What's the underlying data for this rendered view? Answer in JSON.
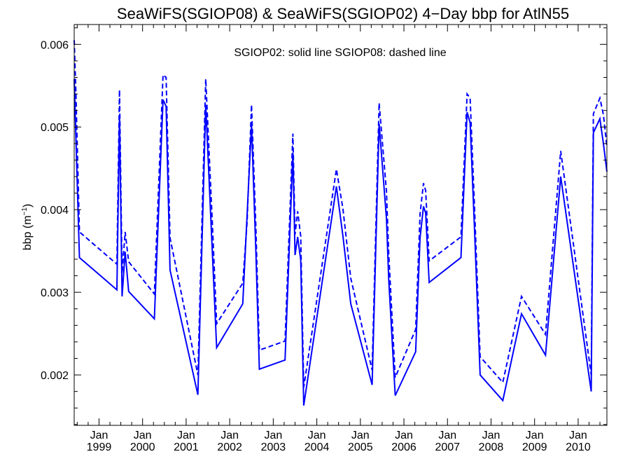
{
  "chart_data": {
    "type": "line",
    "title": "SeaWiFS(SGIOP08) & SeaWiFS(SGIOP02) 4−Day bbp for AtlN55",
    "annotation": "SGIOP02: solid line   SGIOP08: dashed line",
    "ylabel": "bbp (m",
    "ylabel_sup": "−1",
    "ylabel_close": ")",
    "xlim": [
      1998.43,
      2010.66
    ],
    "ylim": [
      0.00139,
      0.00624
    ],
    "grid": false,
    "y_ticks": [
      {
        "value": 0.002,
        "label": "0.002"
      },
      {
        "value": 0.003,
        "label": "0.003"
      },
      {
        "value": 0.004,
        "label": "0.004"
      },
      {
        "value": 0.005,
        "label": "0.005"
      },
      {
        "value": 0.006,
        "label": "0.006"
      }
    ],
    "x_ticks": [
      {
        "value": 1999.0,
        "month": "Jan",
        "year": "1999"
      },
      {
        "value": 2000.0,
        "month": "Jan",
        "year": "2000"
      },
      {
        "value": 2001.0,
        "month": "Jan",
        "year": "2001"
      },
      {
        "value": 2002.0,
        "month": "Jan",
        "year": "2002"
      },
      {
        "value": 2003.0,
        "month": "Jan",
        "year": "2003"
      },
      {
        "value": 2004.0,
        "month": "Jan",
        "year": "2004"
      },
      {
        "value": 2005.0,
        "month": "Jan",
        "year": "2005"
      },
      {
        "value": 2006.0,
        "month": "Jan",
        "year": "2006"
      },
      {
        "value": 2007.0,
        "month": "Jan",
        "year": "2007"
      },
      {
        "value": 2008.0,
        "month": "Jan",
        "year": "2008"
      },
      {
        "value": 2009.0,
        "month": "Jan",
        "year": "2009"
      },
      {
        "value": 2010.0,
        "month": "Jan",
        "year": "2010"
      }
    ],
    "series": [
      {
        "name": "SGIOP02",
        "style": "solid",
        "color": "#0000ff",
        "x": [
          1998.43,
          1998.47,
          1998.55,
          1999.41,
          1999.47,
          1999.53,
          1999.6,
          1999.68,
          2000.27,
          2000.47,
          2000.54,
          2000.63,
          2001.27,
          2001.45,
          2001.6,
          2001.7,
          2002.3,
          2002.5,
          2002.6,
          2002.68,
          2003.27,
          2003.45,
          2003.5,
          2003.56,
          2003.63,
          2003.7,
          2004.45,
          2004.6,
          2004.78,
          2005.27,
          2005.43,
          2005.6,
          2005.65,
          2005.8,
          2006.27,
          2006.37,
          2006.45,
          2006.5,
          2006.58,
          2007.31,
          2007.45,
          2007.52,
          2007.62,
          2007.75,
          2008.27,
          2008.7,
          2009.25,
          2009.6,
          2010.3,
          2010.35,
          2010.5,
          2010.58,
          2010.66
        ],
        "y": [
          0.00558,
          0.00485,
          0.00342,
          0.00303,
          0.00512,
          0.00295,
          0.00349,
          0.00301,
          0.00268,
          0.00533,
          0.00525,
          0.00327,
          0.00176,
          0.00527,
          0.00349,
          0.00233,
          0.00286,
          0.00503,
          0.0035,
          0.00207,
          0.00218,
          0.00469,
          0.00345,
          0.00367,
          0.00339,
          0.00163,
          0.00428,
          0.00368,
          0.00286,
          0.00188,
          0.00504,
          0.00389,
          0.00316,
          0.00175,
          0.00228,
          0.00366,
          0.00404,
          0.00396,
          0.00312,
          0.00342,
          0.00518,
          0.00505,
          0.00378,
          0.002,
          0.00169,
          0.00274,
          0.00224,
          0.0044,
          0.0018,
          0.00493,
          0.0051,
          0.0048,
          0.00446
        ]
      },
      {
        "name": "SGIOP08",
        "style": "dashed",
        "color": "#0000ff",
        "x": [
          1998.43,
          1998.47,
          1998.55,
          1999.41,
          1999.47,
          1999.53,
          1999.6,
          1999.68,
          2000.27,
          2000.47,
          2000.54,
          2000.63,
          2001.27,
          2001.45,
          2001.6,
          2001.7,
          2002.3,
          2002.4,
          2002.5,
          2002.6,
          2002.68,
          2003.27,
          2003.45,
          2003.5,
          2003.56,
          2003.63,
          2003.7,
          2004.45,
          2004.6,
          2004.78,
          2005.27,
          2005.43,
          2005.6,
          2005.65,
          2005.8,
          2006.27,
          2006.37,
          2006.45,
          2006.5,
          2006.58,
          2007.31,
          2007.45,
          2007.52,
          2007.62,
          2007.75,
          2008.27,
          2008.7,
          2009.25,
          2009.6,
          2010.3,
          2010.35,
          2010.5,
          2010.58,
          2010.66
        ],
        "y": [
          0.00605,
          0.0054,
          0.00373,
          0.00334,
          0.00545,
          0.00323,
          0.00373,
          0.00337,
          0.00298,
          0.00563,
          0.0056,
          0.00366,
          0.002,
          0.00558,
          0.00385,
          0.00262,
          0.00311,
          0.00385,
          0.00527,
          0.0038,
          0.0023,
          0.00241,
          0.00492,
          0.0037,
          0.00398,
          0.00368,
          0.00185,
          0.00449,
          0.00401,
          0.00317,
          0.00206,
          0.00529,
          0.00422,
          0.00347,
          0.00197,
          0.00255,
          0.00395,
          0.00432,
          0.00423,
          0.00338,
          0.00367,
          0.0054,
          0.00535,
          0.00405,
          0.00222,
          0.00191,
          0.00295,
          0.00249,
          0.00471,
          0.002,
          0.00516,
          0.00535,
          0.00515,
          0.00476
        ]
      }
    ]
  }
}
